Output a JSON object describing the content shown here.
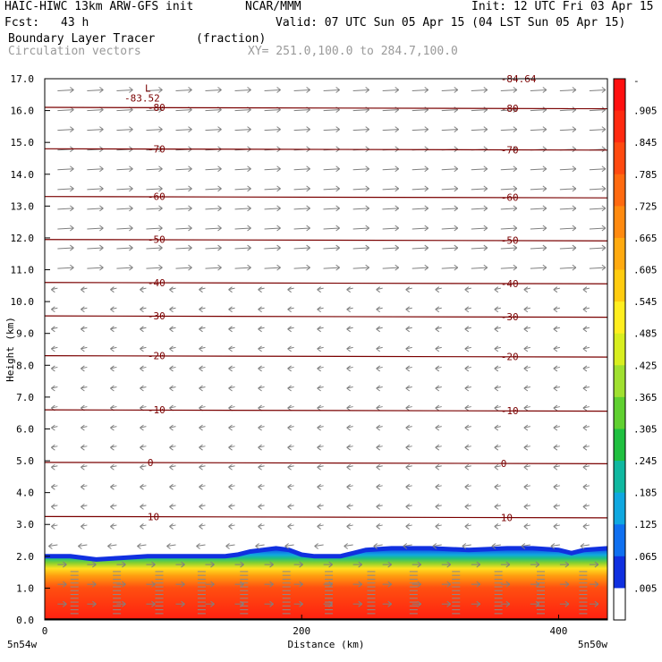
{
  "header": {
    "model": "HAIC-HIWC 13km ARW-GFS init",
    "org": "NCAR/MMM",
    "init": "Init: 12 UTC Fri 03 Apr 15",
    "fcst_label": "Fcst:",
    "fcst_value": "43 h",
    "valid": "Valid: 07 UTC Sun 05 Apr 15 (04 LST Sun 05 Apr 15)",
    "field": "Boundary Layer Tracer",
    "units": "(fraction)",
    "vectors": "Circulation vectors",
    "xy": "XY= 251.0,100.0 to 284.7,100.0"
  },
  "chart_data": {
    "type": "heatmap",
    "title": "Boundary Layer Tracer",
    "xlabel": "Distance (km)",
    "ylabel": "Height (km)",
    "xlim": [
      0,
      438
    ],
    "ylim": [
      0,
      17
    ],
    "x_ticks": [
      {
        "value": 0,
        "label": "0"
      },
      {
        "value": 200,
        "label": "200"
      },
      {
        "value": 400,
        "label": "400"
      }
    ],
    "y_ticks": [
      "0.0",
      "1.0",
      "2.0",
      "3.0",
      "4.0",
      "5.0",
      "6.0",
      "7.0",
      "8.0",
      "9.0",
      "10.0",
      "11.0",
      "12.0",
      "13.0",
      "14.0",
      "15.0",
      "16.0",
      "17.0"
    ],
    "x_endpoints": {
      "left": "5n54w",
      "right": "5n50w"
    },
    "colorbar": {
      "labels": [
        "-",
        ".905",
        ".845",
        ".785",
        ".725",
        ".665",
        ".605",
        ".545",
        ".485",
        ".425",
        ".365",
        ".305",
        ".245",
        ".185",
        ".125",
        ".065",
        ".005"
      ],
      "colors": [
        "#ff1010",
        "#ff2a10",
        "#ff4a10",
        "#ff6a10",
        "#ff8a10",
        "#ffaa10",
        "#ffcc10",
        "#ffee20",
        "#d8ee20",
        "#a0e030",
        "#60d030",
        "#20c040",
        "#10b8a0",
        "#10a8e0",
        "#1070f0",
        "#1030e0",
        "#ffffff"
      ]
    },
    "tracer_top_km": [
      [
        0,
        2.0
      ],
      [
        20,
        2.0
      ],
      [
        40,
        1.9
      ],
      [
        60,
        1.95
      ],
      [
        80,
        2.0
      ],
      [
        100,
        2.0
      ],
      [
        120,
        2.0
      ],
      [
        140,
        2.0
      ],
      [
        150,
        2.05
      ],
      [
        160,
        2.15
      ],
      [
        170,
        2.2
      ],
      [
        180,
        2.25
      ],
      [
        190,
        2.2
      ],
      [
        200,
        2.05
      ],
      [
        210,
        2.0
      ],
      [
        230,
        2.0
      ],
      [
        240,
        2.1
      ],
      [
        250,
        2.2
      ],
      [
        270,
        2.25
      ],
      [
        300,
        2.25
      ],
      [
        330,
        2.2
      ],
      [
        360,
        2.25
      ],
      [
        380,
        2.25
      ],
      [
        400,
        2.2
      ],
      [
        410,
        2.1
      ],
      [
        420,
        2.2
      ],
      [
        438,
        2.25
      ]
    ],
    "isotherms_C": [
      {
        "label": "-80",
        "height_km": 16.1
      },
      {
        "label": "-70",
        "height_km": 14.8
      },
      {
        "label": "-60",
        "height_km": 13.3
      },
      {
        "label": "-50",
        "height_km": 11.95
      },
      {
        "label": "-40",
        "height_km": 10.6
      },
      {
        "label": "-30",
        "height_km": 9.55
      },
      {
        "label": "-20",
        "height_km": 8.3
      },
      {
        "label": "-10",
        "height_km": 6.6
      },
      {
        "label": "0",
        "height_km": 4.95
      },
      {
        "label": "10",
        "height_km": 3.25
      }
    ],
    "annotations": [
      {
        "text": "L",
        "x": 78,
        "y": 16.7
      },
      {
        "text": "-83.52",
        "x": 62,
        "y": 16.4
      },
      {
        "text": "-84.64",
        "x": 355,
        "y": 17.0
      }
    ]
  }
}
